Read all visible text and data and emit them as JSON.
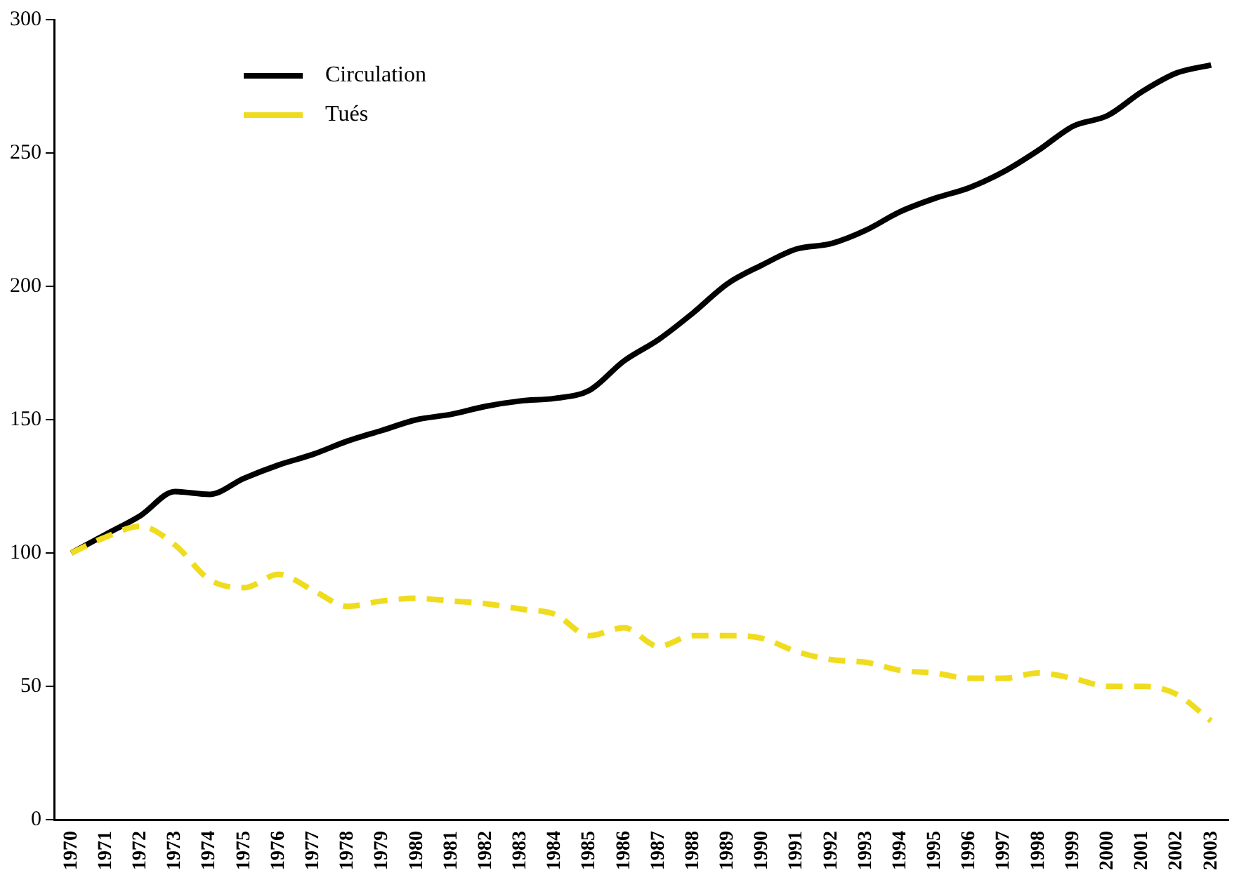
{
  "chart_data": {
    "type": "line",
    "categories": [
      "1970",
      "1971",
      "1972",
      "1973",
      "1974",
      "1975",
      "1976",
      "1977",
      "1978",
      "1979",
      "1980",
      "1981",
      "1982",
      "1983",
      "1984",
      "1985",
      "1986",
      "1987",
      "1988",
      "1989",
      "1990",
      "1991",
      "1992",
      "1993",
      "1994",
      "1995",
      "1996",
      "1997",
      "1998",
      "1999",
      "2000",
      "2001",
      "2002",
      "2003"
    ],
    "series": [
      {
        "name": "Circulation",
        "color": "#000000",
        "line_style": "solid",
        "values": [
          100,
          107,
          114,
          123,
          122,
          128,
          133,
          137,
          142,
          146,
          150,
          152,
          155,
          157,
          158,
          161,
          172,
          180,
          190,
          201,
          208,
          214,
          216,
          221,
          228,
          233,
          237,
          243,
          251,
          260,
          264,
          273,
          280,
          283
        ]
      },
      {
        "name": "Tués",
        "color": "#f0dc1e",
        "line_style": "dashed",
        "values": [
          100,
          106,
          110,
          103,
          90,
          87,
          92,
          86,
          80,
          82,
          83,
          82,
          81,
          79,
          77,
          69,
          72,
          65,
          69,
          69,
          68,
          63,
          60,
          59,
          56,
          55,
          53,
          53,
          55,
          53,
          50,
          50,
          47,
          37
        ]
      }
    ],
    "ylim": [
      0,
      300
    ],
    "yticks": [
      0,
      50,
      100,
      150,
      200,
      250,
      300
    ],
    "grid": false,
    "legend": "top left",
    "marker": "none"
  }
}
